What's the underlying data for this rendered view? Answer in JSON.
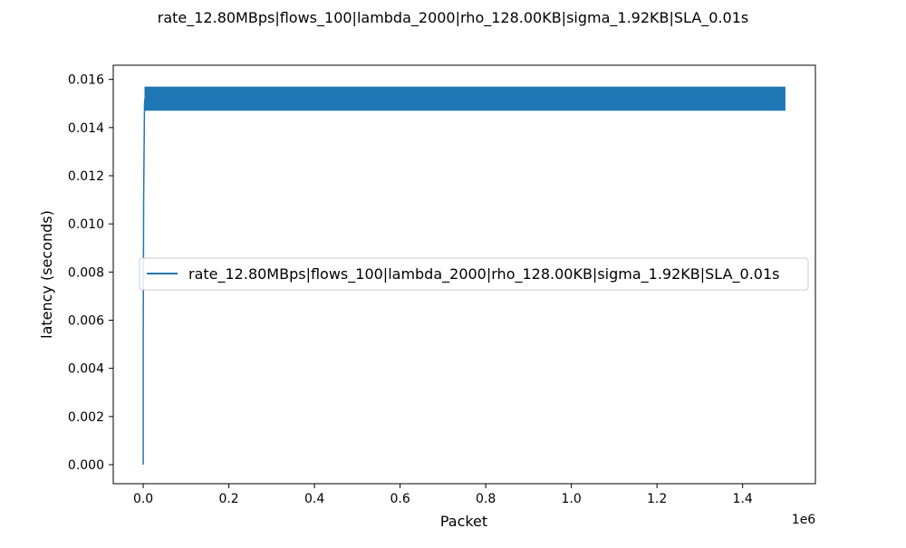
{
  "chart_data": {
    "type": "line",
    "title": "rate_12.80MBps|flows_100|lambda_2000|rho_128.00KB|sigma_1.92KB|SLA_0.01s",
    "xlabel": "Packet",
    "ylabel": "latency (seconds)",
    "x_offset_label": "1e6",
    "xlim": [
      -70000,
      1570000
    ],
    "ylim": [
      -0.00079,
      0.01659
    ],
    "x_tick_values": [
      0,
      200000,
      400000,
      600000,
      800000,
      1000000,
      1200000,
      1400000
    ],
    "x_tick_labels": [
      "0.0",
      "0.2",
      "0.4",
      "0.6",
      "0.8",
      "1.0",
      "1.2",
      "1.4"
    ],
    "y_tick_values": [
      0,
      0.002,
      0.004,
      0.006,
      0.008,
      0.01,
      0.012,
      0.014,
      0.016
    ],
    "y_tick_labels": [
      "0.000",
      "0.002",
      "0.004",
      "0.006",
      "0.008",
      "0.010",
      "0.012",
      "0.014",
      "0.016"
    ],
    "grid": false,
    "legend_position": "center-right",
    "series": [
      {
        "name": "rate_12.80MBps|flows_100|lambda_2000|rho_128.00KB|sigma_1.92KB|SLA_0.01s",
        "color": "#1f77b4",
        "x": [
          0,
          0,
          1000,
          2000,
          3000,
          4000,
          5000,
          1500000
        ],
        "y": [
          0,
          0.0052,
          0.011,
          0.013,
          0.015,
          0.0152,
          0.0152,
          0.0152
        ],
        "band": {
          "x_start": 3000,
          "x_end": 1500000,
          "y_min": 0.0147,
          "y_max": 0.0157
        }
      }
    ]
  }
}
